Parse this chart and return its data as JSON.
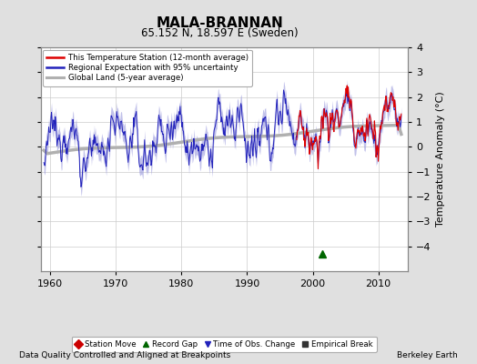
{
  "title": "MALA-BRANNAN",
  "subtitle": "65.152 N, 18.597 E (Sweden)",
  "ylabel": "Temperature Anomaly (°C)",
  "xlabel_note": "Data Quality Controlled and Aligned at Breakpoints",
  "credit": "Berkeley Earth",
  "xlim": [
    1958.5,
    2014.5
  ],
  "ylim": [
    -5,
    4
  ],
  "yticks": [
    -4,
    -3,
    -2,
    -1,
    0,
    1,
    2,
    3,
    4
  ],
  "xticks": [
    1960,
    1970,
    1980,
    1990,
    2000,
    2010
  ],
  "bg_color": "#e0e0e0",
  "plot_bg_color": "#ffffff",
  "grid_color": "#cccccc",
  "station_color": "#dd0000",
  "regional_color": "#2222bb",
  "uncertainty_color": "#9999dd",
  "global_color": "#b0b0b0",
  "record_gap_x": 2001.5,
  "record_gap_y": -4.3,
  "station_start_year": 1997.5
}
